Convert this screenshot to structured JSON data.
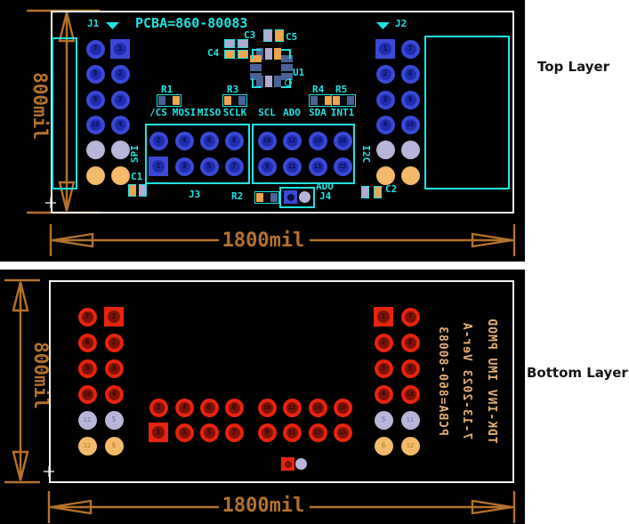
{
  "side_labels": {
    "top": "Top Layer",
    "bottom": "Bottom Layer"
  },
  "colors": {
    "panel_bg": "#000000",
    "silk_cyan": "#20e2e2",
    "dimension_orange": "#b5722b",
    "bottom_silk_orange": "#e7af74",
    "board_outline_white": "#f2f2f2",
    "pad_blue_ring": "#3a49d6",
    "pad_blue_core": "#1f2cae",
    "pad_blue_number": "#071243",
    "pad_red_ring": "#e8230e",
    "pad_red_core": "#7c1207",
    "pad_red_number": "#2d0a05",
    "pad_lavender": "#b7b6da",
    "pad_lavender_number": "#8180bd",
    "pad_orange": "#f3ba6a",
    "pad_orange_number": "#bd8a38",
    "component_slate": "#4a6296",
    "component_orange": "#eda64f",
    "component_lavender": "#b3aacf"
  },
  "top_panel": {
    "title": "PCBA=860-80083",
    "dim_vertical": "800mil",
    "dim_horizontal": "1800mil",
    "j1": {
      "label": "J1",
      "cols": [
        [
          "7",
          "8",
          "9",
          "10",
          "",
          ""
        ],
        [
          "1",
          "2",
          "3",
          "4",
          "",
          ""
        ]
      ]
    },
    "j2": {
      "label": "J2",
      "cols": [
        [
          "1",
          "2",
          "3",
          "4",
          "",
          ""
        ],
        [
          "7",
          "8",
          "9",
          "10",
          "",
          ""
        ]
      ]
    },
    "j3": {
      "label": "J3",
      "bus_left": "SPI",
      "bus_right": "I2C",
      "signals": [
        "/CS",
        "MOSI",
        "MISO",
        "SCLK",
        "SCL",
        "ADO",
        "SDA",
        "INT1"
      ],
      "rows": [
        [
          "2",
          "4",
          "6",
          "8",
          "10",
          "12",
          "14",
          "16"
        ],
        [
          "1",
          "3",
          "5",
          "7",
          "9",
          "11",
          "13",
          "15"
        ]
      ]
    },
    "j4": {
      "label": "J4",
      "signal": "ADO"
    },
    "refdes": {
      "u1": "U1",
      "r1": "R1",
      "r2": "R2",
      "r3": "R3",
      "r4": "R4",
      "r5": "R5",
      "c1": "C1",
      "c2": "C2",
      "c3": "C3",
      "c4": "C4",
      "c5": "C5"
    }
  },
  "bottom_panel": {
    "dim_vertical": "800mil",
    "dim_horizontal": "1800mil",
    "mirrored_silk": [
      "PCBA=860-80083",
      "7-13-2023 Ver-A",
      "TDK-INV IMU PMOD"
    ],
    "left_group": {
      "cols": [
        [
          "7",
          "8",
          "9",
          "10",
          "11",
          "12"
        ],
        [
          "1",
          "2",
          "3",
          "4",
          "5",
          "6"
        ]
      ]
    },
    "right_group": {
      "cols": [
        [
          "1",
          "2",
          "3",
          "4",
          "5",
          "6"
        ],
        [
          "7",
          "8",
          "9",
          "10",
          "11",
          "12"
        ]
      ]
    },
    "center_group": {
      "rows": [
        [
          "2",
          "4",
          "6",
          "8",
          "10",
          "12",
          "14",
          "16"
        ],
        [
          "1",
          "3",
          "5",
          "7",
          "9",
          "11",
          "13",
          "15"
        ]
      ]
    }
  }
}
